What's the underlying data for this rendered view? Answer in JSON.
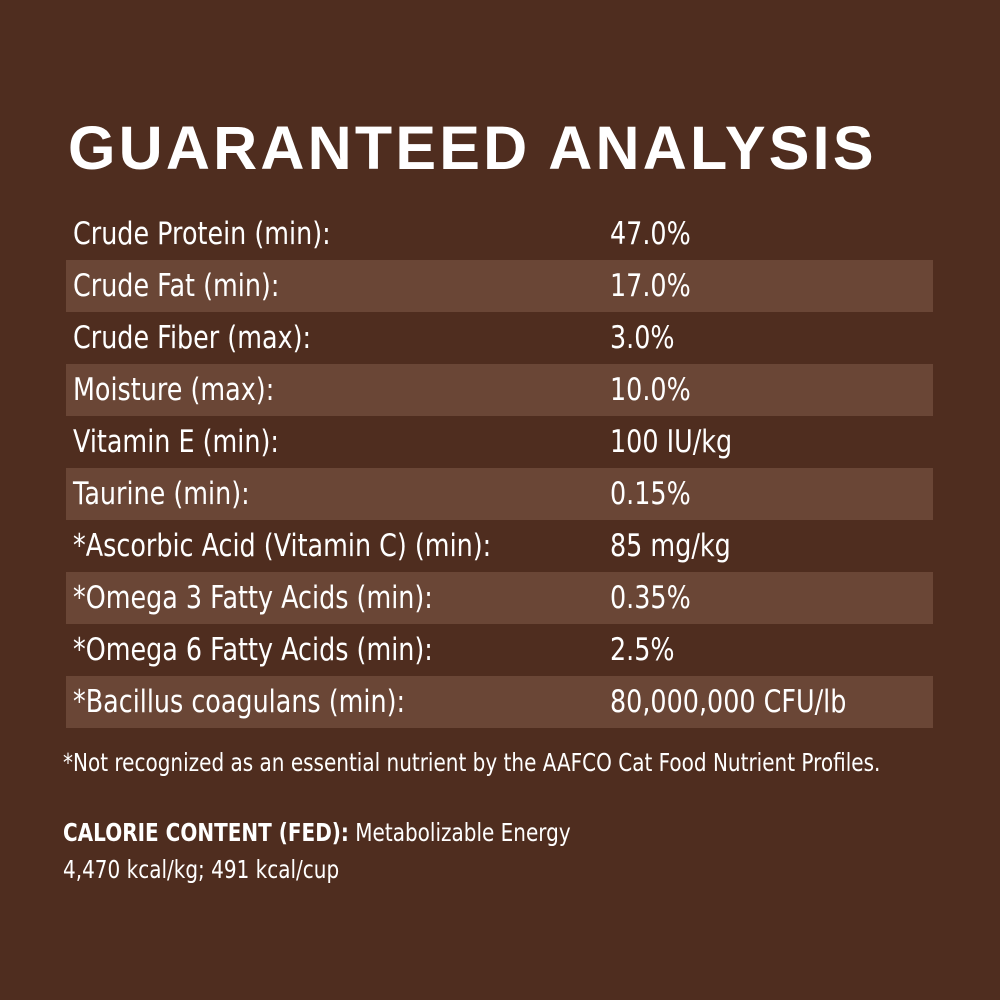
{
  "title": "GUARANTEED ANALYSIS",
  "colors": {
    "background": "#4f2d1f",
    "stripe": "#6a4636",
    "text": "#ffffff"
  },
  "rows": [
    {
      "label": "Crude Protein (min):",
      "value": "47.0%"
    },
    {
      "label": "Crude Fat (min):",
      "value": "17.0%"
    },
    {
      "label": "Crude Fiber (max):",
      "value": "3.0%"
    },
    {
      "label": "Moisture (max):",
      "value": "10.0%"
    },
    {
      "label": "Vitamin E (min):",
      "value": "100 IU/kg"
    },
    {
      "label": "Taurine (min):",
      "value": "0.15%"
    },
    {
      "label": "*Ascorbic Acid (Vitamin C) (min):",
      "value": "85 mg/kg"
    },
    {
      "label": "*Omega 3 Fatty Acids (min):",
      "value": "0.35%"
    },
    {
      "label": "*Omega 6 Fatty Acids (min):",
      "value": "2.5%"
    },
    {
      "label": "*Bacillus coagulans (min):",
      "value": "80,000,000 CFU/lb"
    }
  ],
  "footnote": "*Not recognized as an essential nutrient by the AAFCO Cat Food Nutrient Profiles.",
  "calorie": {
    "heading": "CALORIE CONTENT (FED):",
    "text": " Metabolizable Energy",
    "values": "4,470 kcal/kg; 491 kcal/cup"
  }
}
